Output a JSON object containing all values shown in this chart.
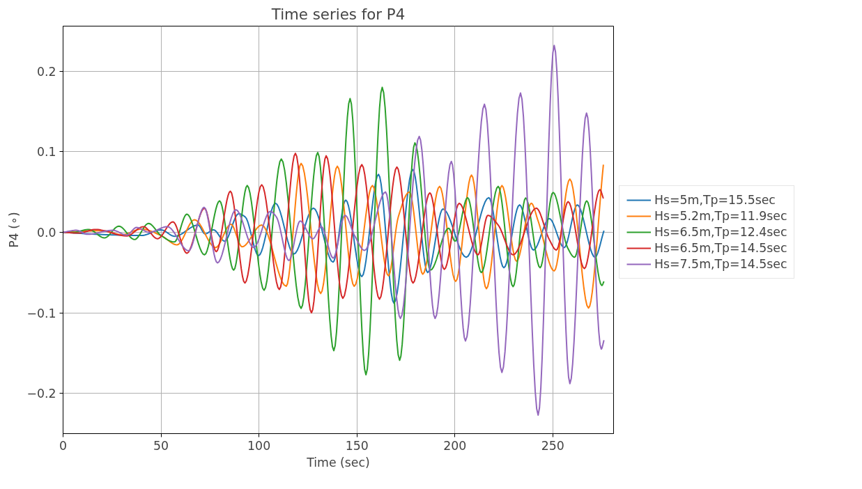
{
  "chart_data": {
    "type": "line",
    "title": "Time series for P4",
    "xlabel": "Time (sec)",
    "ylabel": "P4 (∘)",
    "xlim": [
      0,
      281
    ],
    "ylim": [
      -0.25,
      0.256
    ],
    "xticks": [
      0,
      50,
      100,
      150,
      200,
      250
    ],
    "yticks": [
      {
        "value": -0.2,
        "label": "−0.2"
      },
      {
        "value": -0.1,
        "label": "−0.1"
      },
      {
        "value": 0.0,
        "label": "0.0"
      },
      {
        "value": 0.1,
        "label": "0.1"
      },
      {
        "value": 0.2,
        "label": "0.2"
      }
    ],
    "grid": true,
    "legend": "right",
    "line_style": "solid",
    "marker": "none",
    "series": [
      {
        "name": "Hs=5m,Tp=15.5sec",
        "color": "#1f77b4",
        "x": [
          0,
          22,
          40,
          50,
          57,
          68.9,
          72.5,
          76.8,
          82.5,
          89.6,
          93,
          99.8,
          108.4,
          117.8,
          127.8,
          137.8,
          144.3,
          152.5,
          161.0,
          168.9,
          178.5,
          186.1,
          193.9,
          205.8,
          217.3,
          225,
          233,
          240.1,
          248.2,
          255.8,
          262.5,
          271.5,
          276.1
        ],
        "values": [
          0,
          -0.003,
          -0.004,
          0.003,
          -0.005,
          0.009,
          -0.002,
          0.003,
          -0.011,
          0.023,
          0.019,
          -0.029,
          0.036,
          -0.027,
          0.03,
          -0.037,
          0.04,
          -0.055,
          0.072,
          -0.088,
          0.078,
          -0.05,
          0.029,
          -0.031,
          0.043,
          -0.044,
          0.034,
          -0.022,
          0.017,
          -0.019,
          0.034,
          -0.031,
          0.002
        ]
      },
      {
        "name": "Hs=5.2m,Tp=11.9sec",
        "color": "#ff7f0e",
        "x": [
          0,
          20,
          30,
          40,
          50,
          58.2,
          67.1,
          77.8,
          85.7,
          91.4,
          101.4,
          113.9,
          121.5,
          131.5,
          140.0,
          148.6,
          157.9,
          166.1,
          171.1,
          176.8,
          183.6,
          192.2,
          200.4,
          208.5,
          216.1,
          224,
          231.5,
          239,
          242.5,
          250.7,
          258.7,
          268.2,
          275.8
        ],
        "values": [
          0,
          0.002,
          -0.003,
          0.004,
          -0.004,
          -0.0156,
          0.0156,
          -0.019,
          0.01,
          -0.018,
          0.009,
          -0.067,
          0.0855,
          -0.076,
          0.082,
          -0.067,
          0.058,
          -0.054,
          0.019,
          0.05,
          -0.052,
          0.057,
          -0.061,
          0.071,
          -0.07,
          0.058,
          -0.036,
          0.036,
          0.014,
          -0.048,
          0.066,
          -0.094,
          0.084
        ]
      },
      {
        "name": "Hs=6.5m,Tp=12.4sec",
        "color": "#2ca02c",
        "x": [
          0,
          5,
          13.2,
          21.1,
          28.5,
          36.5,
          43.6,
          50,
          56.8,
          63.2,
          72.2,
          79.9,
          87.1,
          94.0,
          102.6,
          111.4,
          121.5,
          130.0,
          138.2,
          146.5,
          154.6,
          162.9,
          171.8,
          179.6,
          187.5,
          196.8,
          200.1,
          206.5,
          213.5,
          222.1,
          229.7,
          236.1,
          243.5,
          250.1,
          257.5,
          261.1,
          267.3,
          275,
          276.1
        ],
        "values": [
          0,
          0,
          0.0035,
          -0.007,
          0.0076,
          -0.009,
          0.011,
          -0.004,
          -0.012,
          0.0225,
          -0.028,
          0.039,
          -0.047,
          0.058,
          -0.072,
          0.091,
          -0.0945,
          0.099,
          -0.147,
          0.166,
          -0.177,
          0.18,
          -0.159,
          0.111,
          -0.047,
          0.005,
          -0.011,
          0.043,
          -0.05,
          0.057,
          -0.0675,
          0.0426,
          -0.044,
          0.0495,
          -0.019,
          -0.031,
          0.039,
          -0.066,
          -0.061
        ]
      },
      {
        "name": "Hs=6.5m,Tp=14.5sec",
        "color": "#d62728",
        "x": [
          0,
          8,
          16.5,
          32.5,
          41,
          48.2,
          56.1,
          63.2,
          72.2,
          78.2,
          85.4,
          92.8,
          101.4,
          110.4,
          118.6,
          126.8,
          134.3,
          142.8,
          152.5,
          161.5,
          170.4,
          178.6,
          187.2,
          194.6,
          202.2,
          211.8,
          216.8,
          222.1,
          229.7,
          241.5,
          248.2,
          251.8,
          257.8,
          266.1,
          274,
          275.8
        ],
        "values": [
          0,
          -0.001,
          0.0035,
          -0.0045,
          0.007,
          -0.008,
          0.013,
          -0.026,
          0.03,
          -0.024,
          0.051,
          -0.063,
          0.059,
          -0.071,
          0.098,
          -0.1,
          0.095,
          -0.082,
          0.084,
          -0.083,
          0.081,
          -0.063,
          0.049,
          -0.046,
          0.036,
          -0.028,
          0.021,
          0.009,
          -0.028,
          0.03,
          -0.009,
          -0.022,
          0.038,
          -0.045,
          0.053,
          0.042
        ]
      },
      {
        "name": "Hs=7.5m,Tp=14.5sec",
        "color": "#9467bd",
        "x": [
          0,
          6.8,
          12.5,
          25.4,
          32.5,
          37.5,
          43.9,
          53.2,
          64.1,
          72,
          78.8,
          88.2,
          97.3,
          105.8,
          108.9,
          115.3,
          121,
          127.5,
          131.8,
          137.9,
          143.9,
          148.9,
          153.9,
          164.6,
          172.2,
          181.8,
          189.9,
          198.2,
          205.4,
          215.1,
          224,
          233.5,
          242.5,
          250.7,
          258.7,
          267.2,
          274.7,
          276.1
        ],
        "values": [
          0,
          0.0025,
          -0.0025,
          0.0025,
          -0.0035,
          0.006,
          0,
          0.007,
          -0.023,
          0.031,
          -0.038,
          0.028,
          -0.019,
          0.026,
          0.019,
          -0.035,
          0.014,
          -0.008,
          0.007,
          -0.032,
          0.021,
          -0.0045,
          -0.0225,
          0.05,
          -0.107,
          0.119,
          -0.107,
          0.088,
          -0.135,
          0.159,
          -0.174,
          0.173,
          -0.227,
          0.232,
          -0.188,
          0.148,
          -0.145,
          -0.134
        ]
      }
    ]
  }
}
